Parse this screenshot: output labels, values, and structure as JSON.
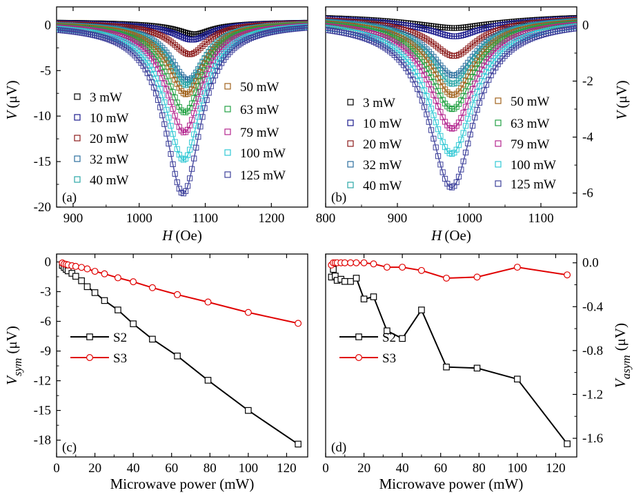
{
  "chart_data": [
    {
      "panel": "(a)",
      "type": "scatter",
      "description_ylabel": "V (μV)",
      "ylabel_main": "V",
      "ylabel_unit": "(μV)",
      "xlabel_main": "H",
      "xlabel_unit": "(Oe)",
      "xlim": [
        875,
        1255
      ],
      "ylim": [
        -20,
        2
      ],
      "xticks": [
        900,
        1000,
        1100,
        1200
      ],
      "yticks": [
        0,
        -5,
        -10,
        -15,
        -20
      ],
      "yaxis_side": "left",
      "legend": [
        {
          "label": "3 mW",
          "color": "#000000",
          "power": 3,
          "center": 1085,
          "width": 30,
          "dip": -1.0,
          "asym": 0.1
        },
        {
          "label": "10 mW",
          "color": "#1a1a8c",
          "power": 10,
          "center": 1082,
          "width": 32,
          "dip": -1.6,
          "asym": 0.2
        },
        {
          "label": "20 mW",
          "color": "#8b1a1a",
          "power": 20,
          "center": 1078,
          "width": 32,
          "dip": -3.2,
          "asym": 0.3
        },
        {
          "label": "32 mW",
          "color": "#2b6f9e",
          "power": 32,
          "center": 1075,
          "width": 32,
          "dip": -6.0,
          "asym": 0.4
        },
        {
          "label": "40 mW",
          "color": "#2aa6a6",
          "power": 40,
          "center": 1073,
          "width": 32,
          "dip": -6.6,
          "asym": 0.5
        },
        {
          "label": "50 mW",
          "color": "#a0621a",
          "power": 50,
          "center": 1072,
          "width": 32,
          "dip": -7.6,
          "asym": 0.5
        },
        {
          "label": "63 mW",
          "color": "#22a043",
          "power": 63,
          "center": 1070,
          "width": 32,
          "dip": -9.6,
          "asym": 0.6
        },
        {
          "label": "79 mW",
          "color": "#b3258e",
          "power": 79,
          "center": 1069,
          "width": 32,
          "dip": -11.8,
          "asym": 0.6
        },
        {
          "label": "100 mW",
          "color": "#30c8d4",
          "power": 100,
          "center": 1068,
          "width": 33,
          "dip": -14.8,
          "asym": 0.7
        },
        {
          "label": "125 mW",
          "color": "#3c3f9a",
          "power": 125,
          "center": 1067,
          "width": 33,
          "dip": -18.5,
          "asym": 0.8
        }
      ]
    },
    {
      "panel": "(b)",
      "type": "scatter",
      "ylabel_main": "V",
      "ylabel_unit": "(μV)",
      "xlabel_main": "H",
      "xlabel_unit": "(Oe)",
      "xlim": [
        800,
        1150
      ],
      "ylim": [
        -6.5,
        0.65
      ],
      "xticks": [
        800,
        900,
        1000,
        1100
      ],
      "yticks": [
        0,
        -2,
        -4,
        -6
      ],
      "yaxis_side": "right",
      "legend": [
        {
          "label": "3 mW",
          "color": "#000000",
          "power": 3,
          "center": 985,
          "width": 35,
          "dip": -0.1,
          "asym": 0.05
        },
        {
          "label": "10 mW",
          "color": "#1a1a8c",
          "power": 10,
          "center": 982,
          "width": 36,
          "dip": -0.4,
          "asym": 0.05
        },
        {
          "label": "20 mW",
          "color": "#8b1a1a",
          "power": 20,
          "center": 980,
          "width": 36,
          "dip": -1.1,
          "asym": 0.08
        },
        {
          "label": "32 mW",
          "color": "#2b6f9e",
          "power": 32,
          "center": 979,
          "width": 36,
          "dip": -1.8,
          "asym": 0.1
        },
        {
          "label": "40 mW",
          "color": "#2aa6a6",
          "power": 40,
          "center": 978,
          "width": 36,
          "dip": -2.1,
          "asym": 0.1
        },
        {
          "label": "50 mW",
          "color": "#a0621a",
          "power": 50,
          "center": 978,
          "width": 36,
          "dip": -2.5,
          "asym": 0.12
        },
        {
          "label": "63 mW",
          "color": "#22a043",
          "power": 63,
          "center": 977,
          "width": 37,
          "dip": -3.0,
          "asym": 0.12
        },
        {
          "label": "79 mW",
          "color": "#b3258e",
          "power": 79,
          "center": 977,
          "width": 37,
          "dip": -3.7,
          "asym": 0.14
        },
        {
          "label": "100 mW",
          "color": "#30c8d4",
          "power": 100,
          "center": 976,
          "width": 38,
          "dip": -4.6,
          "asym": 0.15
        },
        {
          "label": "125 mW",
          "color": "#3c3f9a",
          "power": 125,
          "center": 976,
          "width": 38,
          "dip": -5.8,
          "asym": 0.16
        }
      ]
    },
    {
      "panel": "(c)",
      "type": "line",
      "ylabel_main": "V",
      "ylabel_sub": "sym",
      "ylabel_unit": "(μV)",
      "xlabel": "Microwave power (mW)",
      "xlim": [
        0,
        131
      ],
      "ylim": [
        -19.7,
        0.8
      ],
      "xticks": [
        0,
        20,
        40,
        60,
        80,
        100,
        120
      ],
      "yticks": [
        0,
        -3,
        -6,
        -9,
        -12,
        -15,
        -18
      ],
      "yaxis_side": "left",
      "series": [
        {
          "name": "S2",
          "color": "#000000",
          "marker": "square",
          "x": [
            3,
            4,
            5,
            6,
            8,
            10,
            13,
            16,
            20,
            25,
            32,
            40,
            50,
            63,
            79,
            100,
            126
          ],
          "y": [
            -0.35,
            -0.55,
            -0.75,
            -0.9,
            -1.15,
            -1.45,
            -1.9,
            -2.5,
            -3.1,
            -3.9,
            -4.85,
            -6.25,
            -7.8,
            -9.5,
            -11.95,
            -15.0,
            -18.4
          ]
        },
        {
          "name": "S3",
          "color": "#e00000",
          "marker": "circle",
          "x": [
            3,
            4,
            5,
            6,
            8,
            10,
            13,
            16,
            20,
            25,
            32,
            40,
            50,
            63,
            79,
            100,
            126
          ],
          "y": [
            -0.1,
            -0.2,
            -0.25,
            -0.3,
            -0.38,
            -0.45,
            -0.55,
            -0.7,
            -0.95,
            -1.2,
            -1.6,
            -2.0,
            -2.6,
            -3.3,
            -4.05,
            -5.1,
            -6.2
          ]
        }
      ]
    },
    {
      "panel": "(d)",
      "type": "line",
      "ylabel_main": "V",
      "ylabel_sub": "asym",
      "ylabel_unit": "(μV)",
      "xlabel": "Microwave power (mW)",
      "xlim": [
        0,
        131
      ],
      "ylim": [
        -1.77,
        0.08
      ],
      "xticks": [
        0,
        20,
        40,
        60,
        80,
        100,
        120
      ],
      "yticks": [
        0.0,
        -0.4,
        -0.8,
        -1.2,
        -1.6
      ],
      "yaxis_side": "right",
      "series": [
        {
          "name": "S2",
          "color": "#000000",
          "marker": "square",
          "x": [
            3,
            4,
            5,
            6,
            8,
            10,
            13,
            16,
            20,
            25,
            32,
            40,
            50,
            63,
            79,
            100,
            126
          ],
          "y": [
            -0.13,
            -0.06,
            -0.12,
            -0.16,
            -0.15,
            -0.17,
            -0.17,
            -0.14,
            -0.33,
            -0.31,
            -0.62,
            -0.69,
            -0.43,
            -0.95,
            -0.96,
            -1.06,
            -1.65
          ]
        },
        {
          "name": "S3",
          "color": "#e00000",
          "marker": "circle",
          "x": [
            3,
            4,
            5,
            6,
            8,
            10,
            13,
            16,
            20,
            25,
            32,
            40,
            50,
            63,
            79,
            100,
            126
          ],
          "y": [
            -0.02,
            0.0,
            0.0,
            0.0,
            0.0,
            0.0,
            0.0,
            0.0,
            0.0,
            -0.01,
            -0.04,
            -0.04,
            -0.07,
            -0.14,
            -0.13,
            -0.04,
            -0.11
          ]
        }
      ]
    }
  ]
}
